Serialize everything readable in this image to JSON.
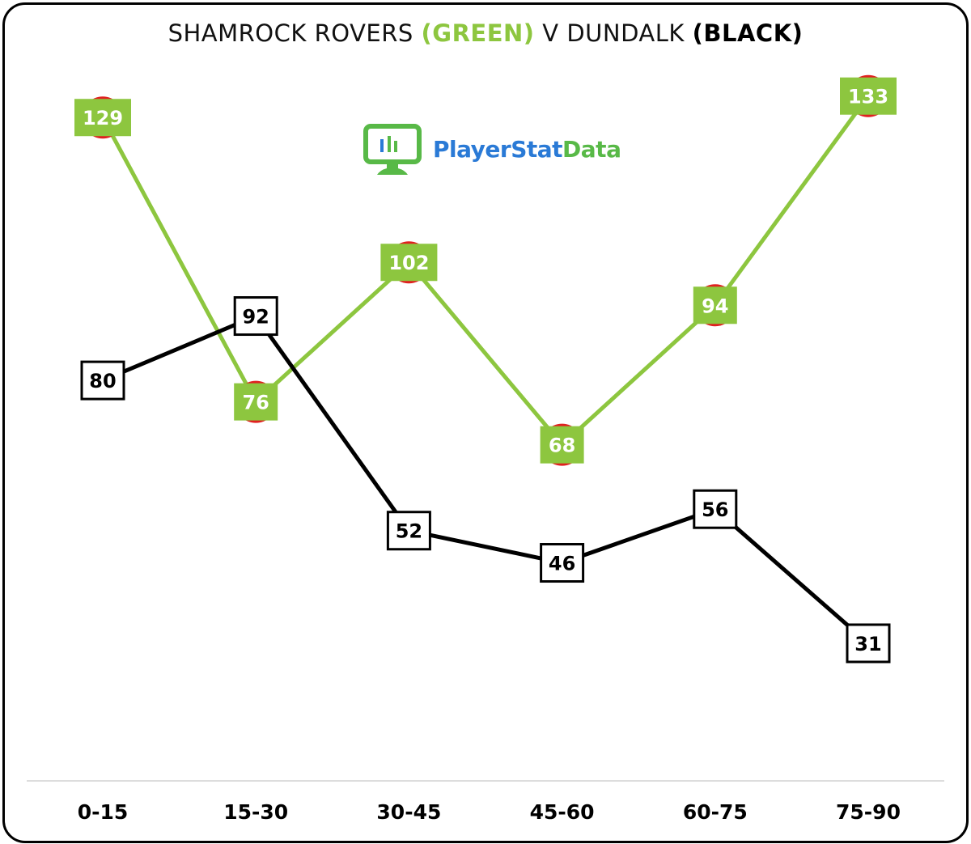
{
  "title": {
    "part1": "SHAMROCK ROVERS ",
    "part2": "(GREEN)",
    "part3": " V DUNDALK ",
    "part4": "(BLACK)"
  },
  "logo": {
    "text_player": "PlayerStat",
    "text_data": "Data",
    "icon": "monitor-chart-icon"
  },
  "colors": {
    "green": "#8dc63f",
    "black": "#000000",
    "marker": "#e02020"
  },
  "chart_data": {
    "type": "line",
    "categories": [
      "0-15",
      "15-30",
      "30-45",
      "45-60",
      "60-75",
      "75-90"
    ],
    "series": [
      {
        "values": [
          129,
          76,
          102,
          68,
          94,
          133
        ],
        "color": "#8dc63f"
      },
      {
        "values": [
          80,
          92,
          52,
          46,
          56,
          31
        ],
        "color": "#000000"
      }
    ],
    "grid": false,
    "legend": "none"
  }
}
